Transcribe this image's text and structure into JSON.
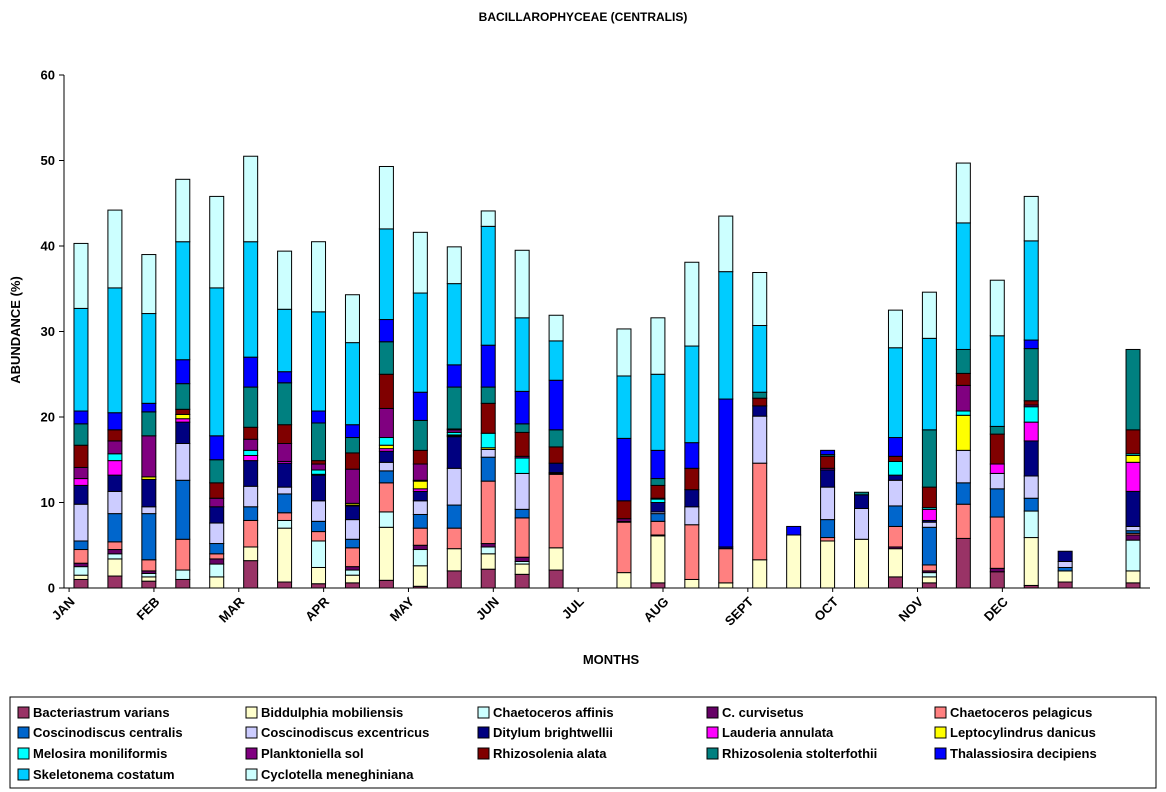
{
  "chart_data": {
    "type": "bar",
    "stacked": true,
    "title": "BACILLAROPHYCEAE (CENTRALIS)",
    "xlabel": "MONTHS",
    "ylabel": "ABUNDANCE (%)",
    "ylim": [
      0,
      60
    ],
    "yticks": [
      0,
      10,
      20,
      30,
      40,
      50,
      60
    ],
    "grid": false,
    "legend_position": "bottom",
    "month_labels": [
      "JAN",
      "FEB",
      "MAR",
      "APR",
      "MAY",
      "JUN",
      "JUL",
      "AUG",
      "SEPT",
      "OCT",
      "NOV",
      "DEC"
    ],
    "series": [
      {
        "name": "Bacteriastrum varians",
        "color": "#993366"
      },
      {
        "name": "Biddulphia mobiliensis",
        "color": "#FFFFCC"
      },
      {
        "name": "Chaetoceros affinis",
        "color": "#CCFFFF"
      },
      {
        "name": "C. curvisetus",
        "color": "#660066"
      },
      {
        "name": "Chaetoceros pelagicus",
        "color": "#FF8080"
      },
      {
        "name": "Coscinodiscus centralis",
        "color": "#0066CC"
      },
      {
        "name": "Coscinodiscus excentricus",
        "color": "#CCCCFF"
      },
      {
        "name": "Ditylum brightwellii",
        "color": "#000080"
      },
      {
        "name": "Lauderia annulata",
        "color": "#FF00FF"
      },
      {
        "name": "Leptocylindrus danicus",
        "color": "#FFFF00"
      },
      {
        "name": "Melosira moniliformis",
        "color": "#00FFFF"
      },
      {
        "name": "Planktoniella sol",
        "color": "#800080"
      },
      {
        "name": "Rhizosolenia alata",
        "color": "#800000"
      },
      {
        "name": "Rhizosolenia stolterfothii",
        "color": "#008080"
      },
      {
        "name": "Thalassiosira decipiens",
        "color": "#0000FF"
      },
      {
        "name": "Skeletonema costatum",
        "color": "#00CCFF"
      },
      {
        "name": "Cyclotella meneghiniana",
        "color": "#CCFFFF"
      }
    ],
    "bars": [
      [
        1.0,
        0.5,
        1.0,
        0.4,
        1.6,
        1.0,
        4.3,
        2.2,
        0.8,
        0,
        0,
        1.3,
        2.6,
        2.5,
        1.5,
        12.0,
        7.6
      ],
      [
        1.4,
        2.0,
        0.6,
        0.5,
        0.9,
        3.3,
        2.6,
        1.9,
        1.7,
        0,
        0.8,
        1.5,
        1.3,
        0,
        2.0,
        14.6,
        9.1
      ],
      [
        0.8,
        0.5,
        0.4,
        0.3,
        1.3,
        5.4,
        0.8,
        3.2,
        0,
        0.3,
        0,
        4.8,
        0,
        2.8,
        1.0,
        10.5,
        6.9
      ],
      [
        1.0,
        0,
        1.1,
        0,
        3.6,
        6.9,
        4.3,
        2.5,
        0.4,
        0.5,
        0,
        0,
        0.6,
        3.0,
        2.8,
        13.8,
        7.3
      ],
      [
        0,
        1.3,
        1.5,
        0.6,
        0.6,
        1.2,
        2.4,
        1.9,
        0,
        0,
        0,
        1.0,
        1.8,
        2.7,
        2.8,
        17.3,
        10.7
      ],
      [
        3.2,
        1.6,
        0,
        0,
        3.1,
        1.6,
        2.4,
        3.0,
        0.6,
        0,
        0.6,
        1.3,
        1.4,
        4.7,
        3.5,
        13.5,
        10.0
      ],
      [
        0.7,
        6.3,
        0.9,
        0,
        0.9,
        2.2,
        0.8,
        2.8,
        0.2,
        0,
        0,
        2.1,
        2.2,
        4.9,
        1.3,
        7.3,
        6.8
      ],
      [
        0.5,
        1.9,
        3.1,
        0,
        1.1,
        1.2,
        2.4,
        3.0,
        0.1,
        0,
        0.5,
        0.7,
        0.4,
        4.4,
        1.4,
        11.6,
        8.2
      ],
      [
        0.6,
        0.9,
        0.6,
        0.4,
        2.2,
        1.0,
        2.3,
        1.6,
        0.1,
        0.2,
        0,
        4.0,
        1.9,
        1.8,
        1.5,
        9.6,
        5.6
      ],
      [
        0.9,
        6.2,
        1.8,
        0,
        3.4,
        1.4,
        1.0,
        1.3,
        0.3,
        0.4,
        0.9,
        3.4,
        4.0,
        3.8,
        2.6,
        10.6,
        7.3
      ],
      [
        0.2,
        2.4,
        1.9,
        0.5,
        2.0,
        1.6,
        1.6,
        1.1,
        0.3,
        0.9,
        0.1,
        1.9,
        1.6,
        3.5,
        3.3,
        11.6,
        7.1
      ],
      [
        2.0,
        2.6,
        0,
        0,
        2.4,
        2.7,
        4.3,
        3.7,
        0.1,
        0.1,
        0.3,
        0.3,
        0.1,
        4.9,
        2.6,
        9.5,
        4.3
      ],
      [
        2.2,
        1.8,
        0.8,
        0.4,
        7.3,
        2.8,
        0.9,
        0,
        0,
        0.2,
        1.7,
        0,
        3.5,
        1.9,
        4.9,
        13.9,
        1.8
      ],
      [
        1.6,
        1.2,
        0.3,
        0.5,
        4.6,
        1.0,
        4.2,
        0,
        0,
        0,
        1.8,
        0.2,
        2.8,
        1.0,
        3.8,
        8.6,
        7.9
      ],
      [
        2.1,
        2.6,
        0,
        0,
        8.6,
        0.1,
        0.1,
        1.1,
        0,
        0,
        0,
        0,
        1.9,
        2.0,
        5.8,
        4.6,
        3.0
      ],
      [
        0,
        0,
        0,
        0,
        0,
        0,
        0,
        0,
        0,
        0,
        0,
        0,
        0,
        0,
        0,
        0,
        0
      ],
      [
        0,
        1.8,
        0,
        0,
        5.9,
        0,
        0,
        0.1,
        0,
        0,
        0,
        0.3,
        2.1,
        0,
        7.3,
        7.3,
        5.5
      ],
      [
        0.6,
        5.5,
        0,
        0.1,
        1.6,
        0.9,
        0.2,
        1.1,
        0,
        0,
        0.4,
        0.1,
        1.5,
        0.8,
        3.3,
        8.9,
        6.6
      ],
      [
        0,
        1.0,
        0,
        0,
        6.4,
        0,
        2.1,
        2.0,
        0,
        0,
        0,
        0,
        2.5,
        0,
        3.0,
        11.3,
        9.8
      ],
      [
        0,
        0.6,
        0,
        0,
        4.0,
        0,
        0,
        0.2,
        0,
        0,
        0,
        0,
        0,
        0,
        17.3,
        14.9,
        6.5
      ],
      [
        0,
        3.3,
        0,
        0,
        11.3,
        0,
        5.5,
        1.2,
        0,
        0,
        0,
        0,
        0.9,
        0.7,
        0,
        7.8,
        6.2
      ],
      [
        0,
        6.2,
        0,
        0,
        0,
        0,
        0,
        0,
        0,
        0,
        0,
        0,
        0,
        0,
        1.0,
        0,
        0
      ],
      [
        0,
        5.5,
        0,
        0,
        0.4,
        2.1,
        3.8,
        2.0,
        0,
        0,
        0,
        0.2,
        1.4,
        0.2,
        0.5,
        0,
        0
      ],
      [
        0,
        5.7,
        0,
        0,
        0,
        0,
        3.6,
        1.6,
        0,
        0,
        0,
        0,
        0,
        0.3,
        0,
        0,
        0
      ],
      [
        1.3,
        3.3,
        0,
        0.2,
        2.4,
        2.4,
        3.0,
        0.6,
        0,
        0,
        1.6,
        0,
        0.6,
        0,
        2.2,
        10.5,
        4.4
      ],
      [
        0.6,
        0.7,
        0.5,
        0.2,
        0.7,
        4.4,
        0.6,
        0.2,
        1.3,
        0,
        0.2,
        0,
        2.4,
        6.7,
        0,
        10.7,
        5.4
      ],
      [
        5.8,
        0,
        0,
        0,
        4.0,
        2.5,
        3.8,
        0,
        0,
        4.1,
        0.5,
        3.0,
        1.4,
        2.8,
        0,
        14.8,
        7.0
      ],
      [
        1.9,
        0,
        0,
        0.4,
        6.0,
        3.3,
        1.8,
        0,
        1.1,
        0,
        0,
        0,
        3.5,
        0.9,
        0,
        10.6,
        6.5
      ],
      [
        0.3,
        5.6,
        3.1,
        0,
        0,
        1.5,
        2.6,
        4.1,
        2.2,
        0,
        1.8,
        0.2,
        0.5,
        6.1,
        1.0,
        11.6,
        5.2
      ],
      [
        0.7,
        1.3,
        0,
        0,
        0,
        0.4,
        0.7,
        1.2,
        0,
        0,
        0,
        0,
        0,
        0,
        0,
        0,
        0
      ],
      [
        0,
        0,
        0,
        0,
        0,
        0,
        0,
        0,
        0,
        0,
        0,
        0,
        0,
        0,
        0,
        0,
        0
      ],
      [
        0.6,
        1.4,
        3.6,
        0.6,
        0.2,
        0.3,
        0.5,
        4.1,
        3.4,
        0.8,
        0.2,
        0,
        2.8,
        9.4,
        0,
        0,
        0
      ]
    ]
  },
  "legend_rows": [
    [
      "Bacteriastrum varians",
      "Biddulphia mobiliensis",
      "Chaetoceros affinis",
      "C. curvisetus",
      "Chaetoceros pelagicus"
    ],
    [
      "Coscinodiscus centralis",
      "Coscinodiscus excentricus",
      "Ditylum brightwellii",
      "Lauderia annulata",
      "Leptocylindrus danicus"
    ],
    [
      "Melosira moniliformis",
      "Planktoniella sol",
      "Rhizosolenia alata",
      "Rhizosolenia stolterfothii",
      "Thalassiosira decipiens"
    ],
    [
      "Skeletonema costatum",
      "Cyclotella meneghiniana"
    ]
  ]
}
